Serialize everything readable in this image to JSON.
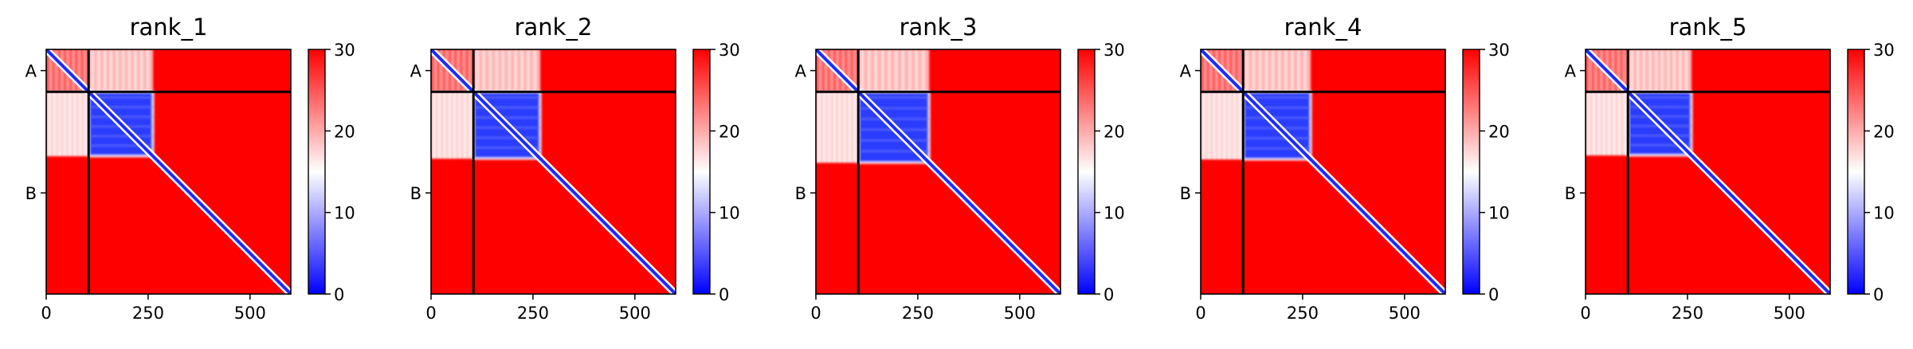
{
  "chart_data": [
    {
      "type": "heatmap",
      "title": "rank_1",
      "x_range": [
        0,
        600
      ],
      "y_range": [
        0,
        600
      ],
      "xticks": [
        0,
        250,
        500
      ],
      "xtick_labels": [
        "0",
        "250",
        "500"
      ],
      "chain_boundary": 104,
      "chain_labels": [
        {
          "label": "A",
          "position": 52
        },
        {
          "label": "B",
          "position": 352
        }
      ],
      "blue_block": {
        "x": [
          104,
          262
        ],
        "y": [
          104,
          262
        ]
      },
      "light_block": {
        "x": [
          0,
          104
        ],
        "y": [
          104,
          262
        ]
      },
      "colorbar": {
        "range": [
          0,
          30
        ],
        "ticks": [
          0,
          10,
          20,
          30
        ],
        "tick_labels": [
          "0",
          "10",
          "20",
          "30"
        ],
        "colors": [
          "#0000ff",
          "#ffffff",
          "#ff0000"
        ]
      }
    },
    {
      "type": "heatmap",
      "title": "rank_2",
      "x_range": [
        0,
        600
      ],
      "y_range": [
        0,
        600
      ],
      "xticks": [
        0,
        250,
        500
      ],
      "xtick_labels": [
        "0",
        "250",
        "500"
      ],
      "chain_boundary": 104,
      "chain_labels": [
        {
          "label": "A",
          "position": 52
        },
        {
          "label": "B",
          "position": 352
        }
      ],
      "blue_block": {
        "x": [
          104,
          268
        ],
        "y": [
          104,
          268
        ]
      },
      "light_block": {
        "x": [
          0,
          104
        ],
        "y": [
          104,
          268
        ]
      },
      "colorbar": {
        "range": [
          0,
          30
        ],
        "ticks": [
          0,
          10,
          20,
          30
        ],
        "tick_labels": [
          "0",
          "10",
          "20",
          "30"
        ],
        "colors": [
          "#0000ff",
          "#ffffff",
          "#ff0000"
        ]
      }
    },
    {
      "type": "heatmap",
      "title": "rank_3",
      "x_range": [
        0,
        600
      ],
      "y_range": [
        0,
        600
      ],
      "xticks": [
        0,
        250,
        500
      ],
      "xtick_labels": [
        "0",
        "250",
        "500"
      ],
      "chain_boundary": 104,
      "chain_labels": [
        {
          "label": "A",
          "position": 52
        },
        {
          "label": "B",
          "position": 352
        }
      ],
      "blue_block": {
        "x": [
          104,
          278
        ],
        "y": [
          104,
          278
        ]
      },
      "light_block": {
        "x": [
          0,
          104
        ],
        "y": [
          104,
          278
        ]
      },
      "colorbar": {
        "range": [
          0,
          30
        ],
        "ticks": [
          0,
          10,
          20,
          30
        ],
        "tick_labels": [
          "0",
          "10",
          "20",
          "30"
        ],
        "colors": [
          "#0000ff",
          "#ffffff",
          "#ff0000"
        ]
      }
    },
    {
      "type": "heatmap",
      "title": "rank_4",
      "x_range": [
        0,
        600
      ],
      "y_range": [
        0,
        600
      ],
      "xticks": [
        0,
        250,
        500
      ],
      "xtick_labels": [
        "0",
        "250",
        "500"
      ],
      "chain_boundary": 104,
      "chain_labels": [
        {
          "label": "A",
          "position": 52
        },
        {
          "label": "B",
          "position": 352
        }
      ],
      "blue_block": {
        "x": [
          104,
          270
        ],
        "y": [
          104,
          270
        ]
      },
      "light_block": {
        "x": [
          0,
          104
        ],
        "y": [
          104,
          270
        ]
      },
      "colorbar": {
        "range": [
          0,
          30
        ],
        "ticks": [
          0,
          10,
          20,
          30
        ],
        "tick_labels": [
          "0",
          "10",
          "20",
          "30"
        ],
        "colors": [
          "#0000ff",
          "#ffffff",
          "#ff0000"
        ]
      }
    },
    {
      "type": "heatmap",
      "title": "rank_5",
      "x_range": [
        0,
        600
      ],
      "y_range": [
        0,
        600
      ],
      "xticks": [
        0,
        250,
        500
      ],
      "xtick_labels": [
        "0",
        "250",
        "500"
      ],
      "chain_boundary": 104,
      "chain_labels": [
        {
          "label": "A",
          "position": 52
        },
        {
          "label": "B",
          "position": 352
        }
      ],
      "blue_block": {
        "x": [
          104,
          260
        ],
        "y": [
          104,
          260
        ]
      },
      "light_block": {
        "x": [
          0,
          104
        ],
        "y": [
          104,
          260
        ]
      },
      "colorbar": {
        "range": [
          0,
          30
        ],
        "ticks": [
          0,
          10,
          20,
          30
        ],
        "tick_labels": [
          "0",
          "10",
          "20",
          "30"
        ],
        "colors": [
          "#0000ff",
          "#ffffff",
          "#ff0000"
        ]
      }
    }
  ]
}
